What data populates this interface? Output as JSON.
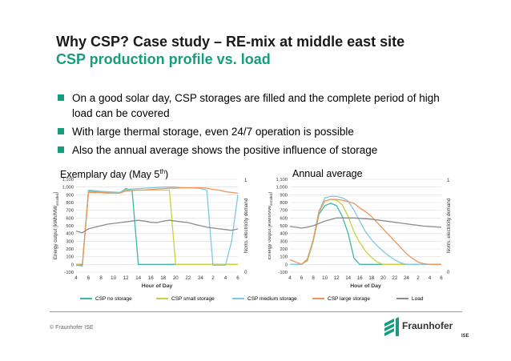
{
  "slide": {
    "title": "Why CSP? Case study – RE-mix at middle east site",
    "subtitle": "CSP production profile vs. load",
    "bullets": [
      "On a good solar day, CSP storages are filled and the complete period of high load can be covered",
      "With large thermal storage, even 24/7 operation is possible",
      "Also the annual average shows the positive influence of storage"
    ],
    "footer": "© Fraunhofer ISE",
    "logo_text": "Fraunhofer",
    "logo_sub": "ISE"
  },
  "colors": {
    "accent": "#179c7d",
    "csp_no_storage": "#3fb6a8",
    "csp_small_storage": "#c8d23c",
    "csp_medium_storage": "#7ec8e3",
    "csp_large_storage": "#f0955a",
    "load": "#8c8c8c"
  },
  "legend": [
    "CSP no storage",
    "CSP small storage",
    "CSP medium storage",
    "CSP large storage",
    "Load"
  ],
  "chart_data": [
    {
      "type": "line",
      "caption": "Exemplary day (May 5",
      "caption_sup": "th",
      "caption_end": ")",
      "xlabel": "Hour of Day",
      "ylabel_main": "Energy output [kWh/MW",
      "ylabel_sub": "installed",
      "ylabel_end": "]",
      "y2label": "Norm. electricity demand",
      "x_tick_labels": [
        "4",
        "6",
        "8",
        "10",
        "12",
        "14",
        "16",
        "18",
        "20",
        "22",
        "24",
        "2",
        "4",
        "6"
      ],
      "x": [
        4,
        5,
        6,
        7,
        8,
        9,
        10,
        11,
        12,
        13,
        14,
        15,
        16,
        17,
        18,
        19,
        20,
        21,
        22,
        23,
        24,
        25,
        26,
        27,
        28,
        29,
        30
      ],
      "ylim": [
        -100,
        1100
      ],
      "y_ticks": [
        -100,
        0,
        100,
        200,
        300,
        400,
        500,
        600,
        700,
        800,
        900,
        "1,000",
        "1,100"
      ],
      "y2_ticks": [
        "0",
        "1"
      ],
      "series": [
        {
          "name": "CSP no storage",
          "values": [
            0,
            0,
            950,
            940,
            930,
            930,
            920,
            925,
            980,
            960,
            0,
            0,
            0,
            0,
            0,
            0,
            0,
            0,
            0,
            0,
            0,
            0,
            0,
            0,
            0,
            0,
            0
          ]
        },
        {
          "name": "CSP small storage",
          "values": [
            0,
            -10,
            940,
            930,
            925,
            920,
            920,
            925,
            960,
            960,
            960,
            960,
            960,
            960,
            960,
            960,
            0,
            0,
            0,
            0,
            0,
            0,
            0,
            0,
            0,
            0,
            0
          ]
        },
        {
          "name": "CSP medium storage",
          "values": [
            -10,
            -20,
            960,
            955,
            945,
            940,
            935,
            930,
            970,
            975,
            980,
            985,
            990,
            995,
            1000,
            1000,
            1000,
            990,
            990,
            990,
            980,
            960,
            -10,
            -10,
            -10,
            300,
            900
          ]
        },
        {
          "name": "CSP large storage",
          "values": [
            -10,
            -10,
            930,
            925,
            930,
            925,
            920,
            920,
            950,
            955,
            960,
            960,
            970,
            975,
            980,
            985,
            985,
            990,
            990,
            990,
            990,
            985,
            970,
            960,
            940,
            930,
            920
          ]
        },
        {
          "name": "Load",
          "values": [
            430,
            410,
            460,
            480,
            500,
            520,
            530,
            540,
            550,
            560,
            570,
            560,
            545,
            540,
            560,
            570,
            560,
            550,
            540,
            520,
            500,
            480,
            470,
            460,
            450,
            440,
            460
          ]
        }
      ]
    },
    {
      "type": "line",
      "caption": "Annual average",
      "xlabel": "Hour of Day",
      "ylabel_main": "Energy output [kWh/MW",
      "ylabel_sub": "installed",
      "ylabel_end": "]",
      "y2label": "Norm. electricity demand",
      "x_tick_labels": [
        "4",
        "6",
        "8",
        "10",
        "12",
        "14",
        "16",
        "18",
        "20",
        "22",
        "24",
        "2",
        "4",
        "6"
      ],
      "x": [
        4,
        5,
        6,
        7,
        8,
        9,
        10,
        11,
        12,
        13,
        14,
        15,
        16,
        17,
        18,
        19,
        20,
        21,
        22,
        23,
        24,
        25,
        26,
        27,
        28,
        29,
        30
      ],
      "ylim": [
        -100,
        1100
      ],
      "y_ticks": [
        -100,
        0,
        100,
        200,
        300,
        400,
        500,
        600,
        700,
        800,
        900,
        "1,000",
        "1,100"
      ],
      "y2_ticks": [
        "0",
        "1"
      ],
      "series": [
        {
          "name": "CSP no storage",
          "values": [
            0,
            0,
            0,
            50,
            300,
            650,
            760,
            790,
            760,
            620,
            400,
            80,
            0,
            0,
            0,
            0,
            0,
            0,
            0,
            0,
            0,
            0,
            0,
            0,
            0,
            0,
            0
          ]
        },
        {
          "name": "CSP small storage",
          "values": [
            0,
            0,
            0,
            60,
            310,
            680,
            820,
            840,
            830,
            770,
            620,
            420,
            280,
            170,
            90,
            30,
            0,
            0,
            0,
            0,
            0,
            0,
            0,
            0,
            0,
            0,
            0
          ]
        },
        {
          "name": "CSP medium storage",
          "values": [
            0,
            0,
            0,
            70,
            320,
            690,
            860,
            880,
            880,
            860,
            820,
            700,
            560,
            420,
            320,
            240,
            170,
            110,
            60,
            20,
            0,
            0,
            0,
            0,
            0,
            0,
            0
          ]
        },
        {
          "name": "CSP large storage",
          "values": [
            60,
            30,
            0,
            70,
            320,
            680,
            820,
            840,
            840,
            830,
            810,
            790,
            730,
            680,
            620,
            540,
            460,
            380,
            300,
            220,
            140,
            80,
            30,
            10,
            0,
            0,
            0
          ]
        },
        {
          "name": "Load",
          "values": [
            490,
            480,
            470,
            480,
            500,
            530,
            560,
            580,
            600,
            600,
            600,
            600,
            595,
            590,
            585,
            575,
            565,
            555,
            545,
            535,
            525,
            515,
            505,
            495,
            490,
            485,
            480
          ]
        }
      ]
    }
  ]
}
